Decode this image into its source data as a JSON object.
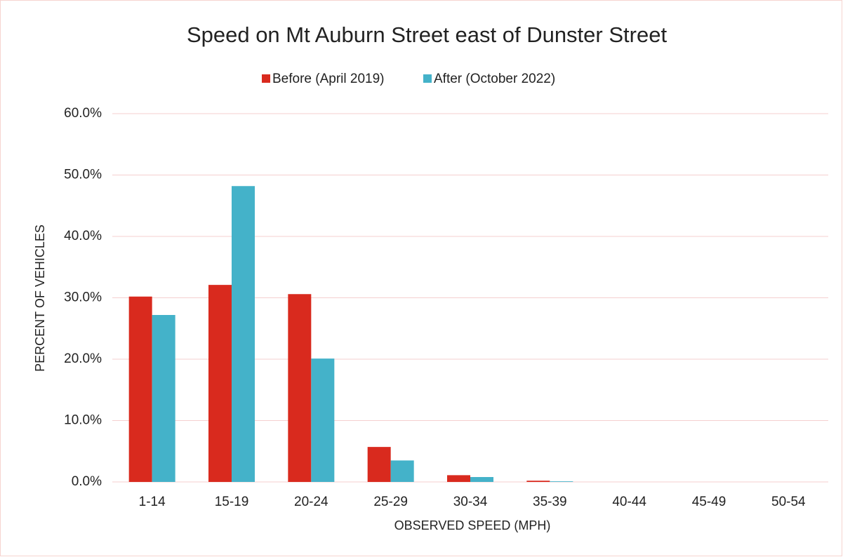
{
  "chart_data": {
    "type": "bar",
    "title": "Speed on Mt Auburn Street east of Dunster Street",
    "x_label": "OBSERVED SPEED (MPH)",
    "y_label": "PERCENT OF VEHICLES",
    "categories": [
      "1-14",
      "15-19",
      "20-24",
      "25-29",
      "30-34",
      "35-39",
      "40-44",
      "45-49",
      "50-54"
    ],
    "series": [
      {
        "name": "Before (April 2019)",
        "color": "#d92a1e",
        "values": [
          30.2,
          32.1,
          30.6,
          5.7,
          1.1,
          0.2,
          0,
          0,
          0
        ]
      },
      {
        "name": "After (October 2022)",
        "color": "#44b2c9",
        "values": [
          27.2,
          48.2,
          20.1,
          3.5,
          0.8,
          0.1,
          0,
          0,
          0
        ]
      }
    ],
    "ylim": [
      0,
      60
    ],
    "yticks": [
      {
        "value": 0,
        "label": "0.0%"
      },
      {
        "value": 10,
        "label": "10.0%"
      },
      {
        "value": 20,
        "label": "20.0%"
      },
      {
        "value": 30,
        "label": "30.0%"
      },
      {
        "value": 40,
        "label": "40.0%"
      },
      {
        "value": 50,
        "label": "50.0%"
      },
      {
        "value": 60,
        "label": "60.0%"
      }
    ],
    "grid": true,
    "legend": "top"
  }
}
